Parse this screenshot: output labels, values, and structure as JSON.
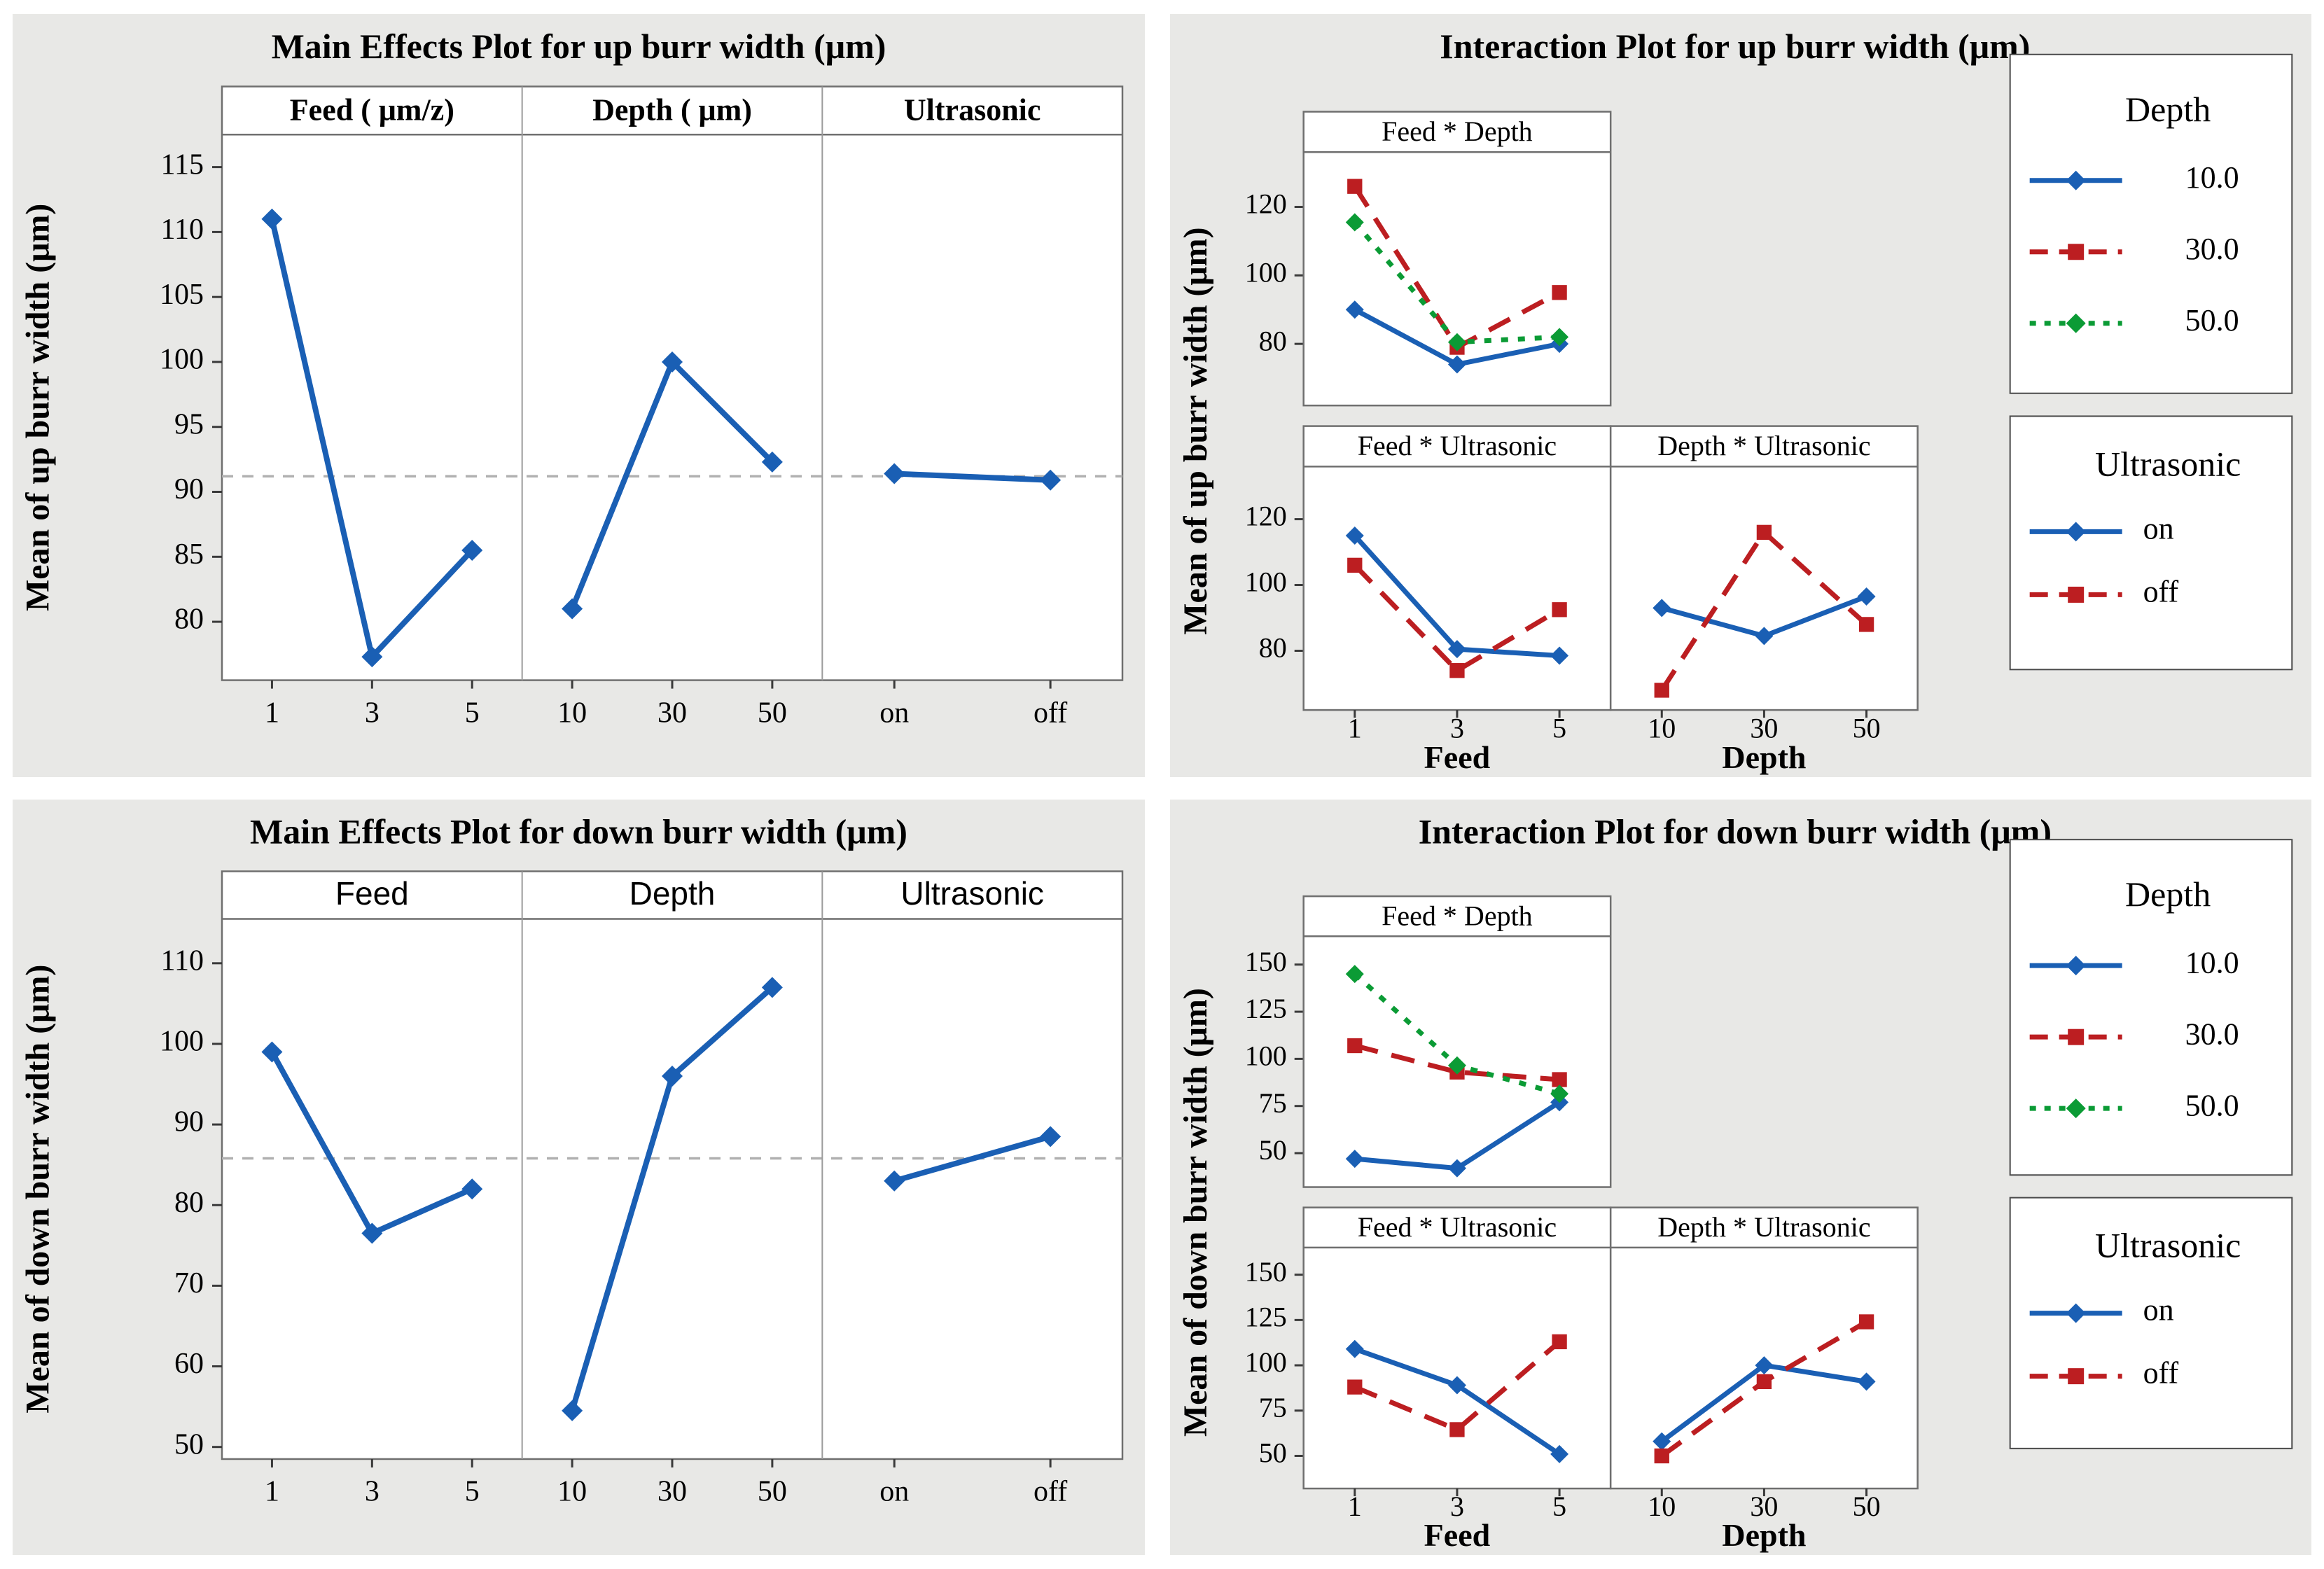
{
  "page": {
    "background": "#ffffff",
    "panel_background": "#e8e8e6"
  },
  "colors": {
    "blue": "#1a5fb4",
    "red": "#bc1e21",
    "green": "#0b9b35",
    "mean_line": "#b0b0b0",
    "axis": "#3a3a3a",
    "border": "#6f6f6f",
    "divider": "#9b9b9b",
    "legend_border": "#4a4a4a",
    "plot_bg": "#ffffff",
    "text": "#000000"
  },
  "chart_data": [
    {
      "id": "main-effects-up",
      "type": "line",
      "variant": "main_effects",
      "title": "Main Effects Plot for up burr width (μm)",
      "ylabel": "Mean of up burr width (μm)",
      "ylim": [
        75.5,
        117.5
      ],
      "yticks": [
        80,
        85,
        90,
        95,
        100,
        105,
        110,
        115
      ],
      "mean_line": 91.2,
      "header_style": "serif-bold",
      "series_color": "blue",
      "panels": [
        {
          "header": "Feed ( μm/z)",
          "categories": [
            "1",
            "3",
            "5"
          ],
          "values": [
            111,
            77.3,
            85.5
          ]
        },
        {
          "header": "Depth ( μm)",
          "categories": [
            "10",
            "30",
            "50"
          ],
          "values": [
            81,
            100,
            92.3
          ]
        },
        {
          "header": "Ultrasonic",
          "categories": [
            "on",
            "off"
          ],
          "values": [
            91.4,
            90.9
          ]
        }
      ]
    },
    {
      "id": "interaction-up",
      "type": "line",
      "variant": "interaction",
      "title": "Interaction Plot for up burr width (μm)",
      "ylabel": "Mean of up burr width (μm)",
      "ylim": [
        62,
        136
      ],
      "yticks": [
        80,
        100,
        120
      ],
      "panels": [
        {
          "header": "Feed * Depth",
          "row": 0,
          "col": 0,
          "categories": [
            "1",
            "3",
            "5"
          ],
          "series": [
            {
              "name": "10.0",
              "color": "blue",
              "dash": "solid",
              "marker": "diamond",
              "values": [
                90,
                74,
                80
              ]
            },
            {
              "name": "30.0",
              "color": "red",
              "dash": "dashed",
              "marker": "square",
              "values": [
                126,
                79,
                95
              ]
            },
            {
              "name": "50.0",
              "color": "green",
              "dash": "dotted",
              "marker": "diamond",
              "values": [
                115.5,
                80.5,
                82
              ]
            }
          ]
        },
        {
          "header": "Feed * Ultrasonic",
          "row": 1,
          "col": 0,
          "categories": [
            "1",
            "3",
            "5"
          ],
          "xlabel": "Feed",
          "series": [
            {
              "name": "on",
              "color": "blue",
              "dash": "solid",
              "marker": "diamond",
              "values": [
                115,
                80.5,
                78.5
              ]
            },
            {
              "name": "off",
              "color": "red",
              "dash": "dashed",
              "marker": "square",
              "values": [
                106,
                74,
                92.5
              ]
            }
          ]
        },
        {
          "header": "Depth * Ultrasonic",
          "row": 1,
          "col": 1,
          "categories": [
            "10",
            "30",
            "50"
          ],
          "xlabel": "Depth",
          "series": [
            {
              "name": "on",
              "color": "blue",
              "dash": "solid",
              "marker": "diamond",
              "values": [
                93,
                84.5,
                96.5
              ]
            },
            {
              "name": "off",
              "color": "red",
              "dash": "dashed",
              "marker": "square",
              "values": [
                68,
                116,
                88
              ]
            }
          ]
        }
      ],
      "legends": [
        {
          "title": "Depth",
          "entries": [
            {
              "label": "10.0",
              "color": "blue",
              "dash": "solid",
              "marker": "diamond"
            },
            {
              "label": "30.0",
              "color": "red",
              "dash": "dashed",
              "marker": "square"
            },
            {
              "label": "50.0",
              "color": "green",
              "dash": "dotted",
              "marker": "diamond"
            }
          ]
        },
        {
          "title": "Ultrasonic",
          "entries": [
            {
              "label": "on",
              "color": "blue",
              "dash": "solid",
              "marker": "diamond"
            },
            {
              "label": "off",
              "color": "red",
              "dash": "dashed",
              "marker": "square"
            }
          ]
        }
      ]
    },
    {
      "id": "main-effects-down",
      "type": "line",
      "variant": "main_effects",
      "title": "Main Effects Plot for down burr width (μm)",
      "ylabel": "Mean of down burr width (μm)",
      "ylim": [
        48.5,
        115.5
      ],
      "yticks": [
        50,
        60,
        70,
        80,
        90,
        100,
        110
      ],
      "mean_line": 85.8,
      "header_style": "sans",
      "series_color": "blue",
      "panels": [
        {
          "header": "Feed",
          "categories": [
            "1",
            "3",
            "5"
          ],
          "values": [
            99,
            76.5,
            82
          ]
        },
        {
          "header": "Depth",
          "categories": [
            "10",
            "30",
            "50"
          ],
          "values": [
            54.5,
            96,
            107
          ]
        },
        {
          "header": "Ultrasonic",
          "categories": [
            "on",
            "off"
          ],
          "values": [
            83,
            88.5
          ]
        }
      ]
    },
    {
      "id": "interaction-down",
      "type": "line",
      "variant": "interaction",
      "title": "Interaction Plot for down burr width (μm)",
      "ylabel": "Mean of down burr width (μm)",
      "ylim": [
        32,
        165
      ],
      "yticks": [
        50,
        75,
        100,
        125,
        150
      ],
      "panels": [
        {
          "header": "Feed * Depth",
          "row": 0,
          "col": 0,
          "categories": [
            "1",
            "3",
            "5"
          ],
          "series": [
            {
              "name": "10.0",
              "color": "blue",
              "dash": "solid",
              "marker": "diamond",
              "values": [
                47,
                42,
                77
              ]
            },
            {
              "name": "30.0",
              "color": "red",
              "dash": "dashed",
              "marker": "square",
              "values": [
                107,
                93,
                89
              ]
            },
            {
              "name": "50.0",
              "color": "green",
              "dash": "dotted",
              "marker": "diamond",
              "values": [
                145,
                96.5,
                81.5
              ]
            }
          ]
        },
        {
          "header": "Feed * Ultrasonic",
          "row": 1,
          "col": 0,
          "categories": [
            "1",
            "3",
            "5"
          ],
          "xlabel": "Feed",
          "series": [
            {
              "name": "on",
              "color": "blue",
              "dash": "solid",
              "marker": "diamond",
              "values": [
                109,
                89,
                51
              ]
            },
            {
              "name": "off",
              "color": "red",
              "dash": "dashed",
              "marker": "square",
              "values": [
                88,
                64.5,
                113
              ]
            }
          ]
        },
        {
          "header": "Depth * Ultrasonic",
          "row": 1,
          "col": 1,
          "categories": [
            "10",
            "30",
            "50"
          ],
          "xlabel": "Depth",
          "series": [
            {
              "name": "on",
              "color": "blue",
              "dash": "solid",
              "marker": "diamond",
              "values": [
                58,
                100,
                91
              ]
            },
            {
              "name": "off",
              "color": "red",
              "dash": "dashed",
              "marker": "square",
              "values": [
                50,
                91,
                124
              ]
            }
          ]
        }
      ],
      "legends": [
        {
          "title": "Depth",
          "entries": [
            {
              "label": "10.0",
              "color": "blue",
              "dash": "solid",
              "marker": "diamond"
            },
            {
              "label": "30.0",
              "color": "red",
              "dash": "dashed",
              "marker": "square"
            },
            {
              "label": "50.0",
              "color": "green",
              "dash": "dotted",
              "marker": "diamond"
            }
          ]
        },
        {
          "title": "Ultrasonic",
          "entries": [
            {
              "label": "on",
              "color": "blue",
              "dash": "solid",
              "marker": "diamond"
            },
            {
              "label": "off",
              "color": "red",
              "dash": "dashed",
              "marker": "square"
            }
          ]
        }
      ]
    }
  ]
}
